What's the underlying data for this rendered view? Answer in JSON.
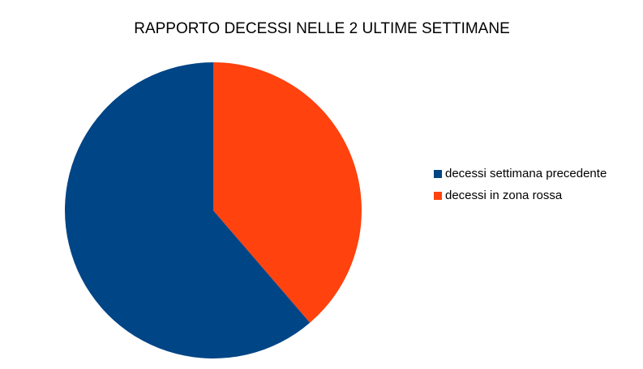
{
  "chart_data": {
    "type": "pie",
    "title": "RAPPORTO DECESSI NELLE 2 ULTIME SETTIMANE",
    "categories": [
      "decessi settimana precedente",
      "decessi in zona rossa"
    ],
    "values": [
      61.3,
      38.7
    ],
    "colors": [
      "#004586",
      "#ff420e"
    ],
    "legend": "right"
  }
}
